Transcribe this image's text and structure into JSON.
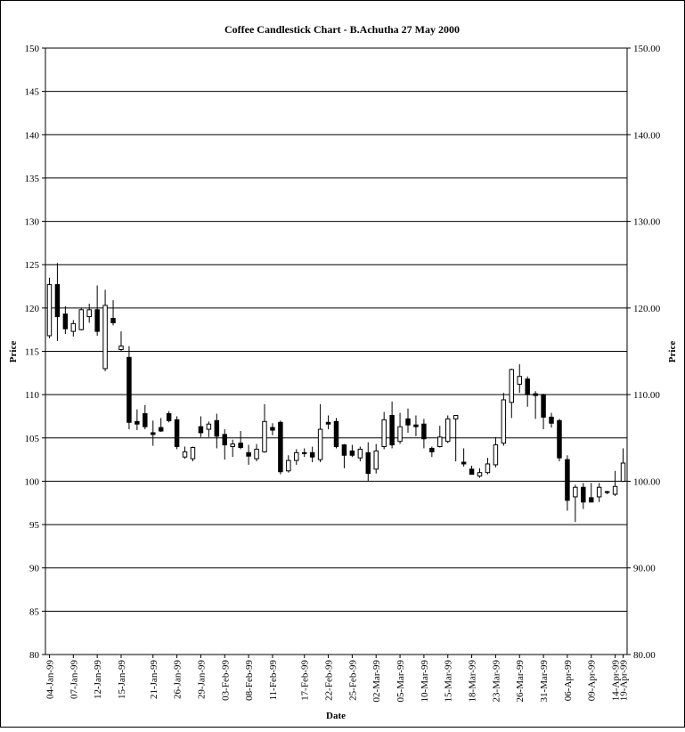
{
  "chart_data": {
    "type": "candlestick",
    "title": "Coffee  Candlestick Chart - B.Achutha 27 May 2000",
    "xlabel": "Date",
    "ylabel_left": "Price",
    "ylabel_right": "Price",
    "ylim": [
      80,
      150
    ],
    "y_ticks_left": [
      "80",
      "85",
      "90",
      "95",
      "100",
      "105",
      "110",
      "115",
      "120",
      "125",
      "130",
      "135",
      "140",
      "145",
      "150"
    ],
    "y_ticks_right": [
      "80.00",
      "90.00",
      "100.00",
      "110.00",
      "120.00",
      "130.00",
      "140.00",
      "150.00"
    ],
    "grid": "horizontal",
    "up_color": "#ffffff",
    "down_color": "#000000",
    "x_tick_labels": [
      "04-Jan-99",
      "07-Jan-99",
      "12-Jan-99",
      "15-Jan-99",
      "21-Jan-99",
      "26-Jan-99",
      "29-Jan-99",
      "03-Feb-99",
      "08-Feb-99",
      "11-Feb-99",
      "17-Feb-99",
      "22-Feb-99",
      "25-Feb-99",
      "02-Mar-99",
      "05-Mar-99",
      "10-Mar-99",
      "15-Mar-99",
      "18-Mar-99",
      "23-Mar-99",
      "26-Mar-99",
      "31-Mar-99",
      "06-Apr-99",
      "09-Apr-99",
      "14-Apr-99",
      "19-Apr-99"
    ],
    "series": [
      {
        "date": "04-Jan-99",
        "open": 116.8,
        "high": 123.5,
        "low": 116.5,
        "close": 122.7
      },
      {
        "date": "05-Jan-99",
        "open": 122.7,
        "high": 125.2,
        "low": 116.2,
        "close": 119.0
      },
      {
        "date": "06-Jan-99",
        "open": 119.3,
        "high": 120.2,
        "low": 117.0,
        "close": 117.6
      },
      {
        "date": "07-Jan-99",
        "open": 117.3,
        "high": 118.6,
        "low": 116.7,
        "close": 118.2
      },
      {
        "date": "08-Jan-99",
        "open": 117.5,
        "high": 120.0,
        "low": 117.4,
        "close": 119.8
      },
      {
        "date": "11-Jan-99",
        "open": 119.0,
        "high": 120.5,
        "low": 118.3,
        "close": 119.8
      },
      {
        "date": "12-Jan-99",
        "open": 119.8,
        "high": 122.6,
        "low": 116.8,
        "close": 117.3
      },
      {
        "date": "13-Jan-99",
        "open": 113.0,
        "high": 122.1,
        "low": 112.7,
        "close": 120.3
      },
      {
        "date": "14-Jan-99",
        "open": 118.8,
        "high": 120.9,
        "low": 118.0,
        "close": 118.3
      },
      {
        "date": "15-Jan-99",
        "open": 115.2,
        "high": 117.3,
        "low": 115.0,
        "close": 115.6
      },
      {
        "date": "18-Jan-99",
        "open": 114.3,
        "high": 115.6,
        "low": 106.0,
        "close": 106.8
      },
      {
        "date": "19-Jan-99",
        "open": 106.9,
        "high": 108.3,
        "low": 105.9,
        "close": 106.6
      },
      {
        "date": "20-Jan-99",
        "open": 107.8,
        "high": 108.8,
        "low": 106.0,
        "close": 106.3
      },
      {
        "date": "21-Jan-99",
        "open": 105.6,
        "high": 107.0,
        "low": 104.1,
        "close": 105.4
      },
      {
        "date": "22-Jan-99",
        "open": 106.2,
        "high": 107.3,
        "low": 105.7,
        "close": 105.8
      },
      {
        "date": "25-Jan-99",
        "open": 107.8,
        "high": 108.1,
        "low": 106.8,
        "close": 107.0
      },
      {
        "date": "26-Jan-99",
        "open": 107.1,
        "high": 107.5,
        "low": 103.7,
        "close": 104.0
      },
      {
        "date": "27-Jan-99",
        "open": 102.8,
        "high": 104.0,
        "low": 102.6,
        "close": 103.4
      },
      {
        "date": "28-Jan-99",
        "open": 102.6,
        "high": 104.0,
        "low": 102.3,
        "close": 103.9
      },
      {
        "date": "29-Jan-99",
        "open": 106.3,
        "high": 107.5,
        "low": 105.1,
        "close": 105.6
      },
      {
        "date": "01-Feb-99",
        "open": 106.0,
        "high": 106.9,
        "low": 105.1,
        "close": 106.6
      },
      {
        "date": "02-Feb-99",
        "open": 107.0,
        "high": 107.8,
        "low": 103.8,
        "close": 105.2
      },
      {
        "date": "03-Feb-99",
        "open": 105.4,
        "high": 106.0,
        "low": 102.5,
        "close": 104.2
      },
      {
        "date": "04-Feb-99",
        "open": 104.0,
        "high": 104.8,
        "low": 102.8,
        "close": 104.3
      },
      {
        "date": "05-Feb-99",
        "open": 104.4,
        "high": 105.8,
        "low": 103.7,
        "close": 103.9
      },
      {
        "date": "08-Feb-99",
        "open": 103.3,
        "high": 104.2,
        "low": 101.9,
        "close": 102.9
      },
      {
        "date": "09-Feb-99",
        "open": 102.6,
        "high": 104.3,
        "low": 102.3,
        "close": 103.7
      },
      {
        "date": "10-Feb-99",
        "open": 103.4,
        "high": 108.9,
        "low": 103.3,
        "close": 106.9
      },
      {
        "date": "11-Feb-99",
        "open": 106.2,
        "high": 106.7,
        "low": 105.3,
        "close": 105.9
      },
      {
        "date": "12-Feb-99",
        "open": 106.8,
        "high": 107.0,
        "low": 100.8,
        "close": 101.1
      },
      {
        "date": "15-Feb-99",
        "open": 101.2,
        "high": 103.0,
        "low": 101.0,
        "close": 102.4
      },
      {
        "date": "16-Feb-99",
        "open": 102.4,
        "high": 103.7,
        "low": 101.9,
        "close": 103.3
      },
      {
        "date": "17-Feb-99",
        "open": 103.3,
        "high": 103.8,
        "low": 102.8,
        "close": 103.3
      },
      {
        "date": "18-Feb-99",
        "open": 103.3,
        "high": 104.0,
        "low": 102.2,
        "close": 102.8
      },
      {
        "date": "19-Feb-99",
        "open": 102.5,
        "high": 108.9,
        "low": 102.2,
        "close": 106.0
      },
      {
        "date": "22-Feb-99",
        "open": 106.8,
        "high": 107.6,
        "low": 106.0,
        "close": 106.6
      },
      {
        "date": "23-Feb-99",
        "open": 106.9,
        "high": 107.3,
        "low": 103.8,
        "close": 104.0
      },
      {
        "date": "24-Feb-99",
        "open": 104.2,
        "high": 104.3,
        "low": 101.5,
        "close": 103.0
      },
      {
        "date": "25-Feb-99",
        "open": 103.5,
        "high": 104.2,
        "low": 102.8,
        "close": 103.0
      },
      {
        "date": "26-Feb-99",
        "open": 102.7,
        "high": 104.0,
        "low": 102.3,
        "close": 103.7
      },
      {
        "date": "01-Mar-99",
        "open": 103.3,
        "high": 104.5,
        "low": 100.0,
        "close": 100.9
      },
      {
        "date": "02-Mar-99",
        "open": 101.4,
        "high": 104.3,
        "low": 100.9,
        "close": 103.5
      },
      {
        "date": "03-Mar-99",
        "open": 104.0,
        "high": 108.0,
        "low": 103.7,
        "close": 107.1
      },
      {
        "date": "04-Mar-99",
        "open": 107.6,
        "high": 109.2,
        "low": 103.8,
        "close": 104.2
      },
      {
        "date": "05-Mar-99",
        "open": 104.6,
        "high": 107.9,
        "low": 104.3,
        "close": 106.3
      },
      {
        "date": "08-Mar-99",
        "open": 107.2,
        "high": 108.4,
        "low": 105.6,
        "close": 106.5
      },
      {
        "date": "09-Mar-99",
        "open": 106.5,
        "high": 107.6,
        "low": 105.2,
        "close": 106.3
      },
      {
        "date": "10-Mar-99",
        "open": 106.6,
        "high": 107.2,
        "low": 103.8,
        "close": 104.9
      },
      {
        "date": "11-Mar-99",
        "open": 103.8,
        "high": 104.0,
        "low": 102.8,
        "close": 103.4
      },
      {
        "date": "12-Mar-99",
        "open": 104.0,
        "high": 106.4,
        "low": 103.9,
        "close": 105.1
      },
      {
        "date": "15-Mar-99",
        "open": 104.6,
        "high": 107.6,
        "low": 104.4,
        "close": 107.2
      },
      {
        "date": "16-Mar-99",
        "open": 107.2,
        "high": 107.6,
        "low": 102.3,
        "close": 107.6
      },
      {
        "date": "17-Mar-99",
        "open": 102.2,
        "high": 103.8,
        "low": 101.7,
        "close": 102.0
      },
      {
        "date": "18-Mar-99",
        "open": 101.4,
        "high": 101.8,
        "low": 100.8,
        "close": 100.8
      },
      {
        "date": "19-Mar-99",
        "open": 100.6,
        "high": 101.5,
        "low": 100.4,
        "close": 101.0
      },
      {
        "date": "22-Mar-99",
        "open": 101.0,
        "high": 102.7,
        "low": 100.8,
        "close": 102.0
      },
      {
        "date": "23-Mar-99",
        "open": 101.9,
        "high": 105.1,
        "low": 101.6,
        "close": 104.2
      },
      {
        "date": "24-Mar-99",
        "open": 104.4,
        "high": 110.2,
        "low": 104.1,
        "close": 109.4
      },
      {
        "date": "25-Mar-99",
        "open": 109.1,
        "high": 113.0,
        "low": 107.3,
        "close": 112.9
      },
      {
        "date": "26-Mar-99",
        "open": 111.2,
        "high": 113.5,
        "low": 110.2,
        "close": 112.1
      },
      {
        "date": "29-Mar-99",
        "open": 111.8,
        "high": 112.1,
        "low": 108.6,
        "close": 110.0
      },
      {
        "date": "30-Mar-99",
        "open": 110.1,
        "high": 110.4,
        "low": 107.2,
        "close": 109.9
      },
      {
        "date": "31-Mar-99",
        "open": 110.0,
        "high": 110.1,
        "low": 106.0,
        "close": 107.4
      },
      {
        "date": "01-Apr-99",
        "open": 107.4,
        "high": 107.9,
        "low": 106.2,
        "close": 106.7
      },
      {
        "date": "05-Apr-99",
        "open": 107.0,
        "high": 107.2,
        "low": 102.3,
        "close": 102.7
      },
      {
        "date": "06-Apr-99",
        "open": 102.5,
        "high": 103.0,
        "low": 96.6,
        "close": 97.8
      },
      {
        "date": "07-Apr-99",
        "open": 98.2,
        "high": 99.6,
        "low": 95.3,
        "close": 99.3
      },
      {
        "date": "08-Apr-99",
        "open": 99.3,
        "high": 99.8,
        "low": 96.8,
        "close": 97.6
      },
      {
        "date": "09-Apr-99",
        "open": 98.1,
        "high": 99.8,
        "low": 97.6,
        "close": 97.6
      },
      {
        "date": "12-Apr-99",
        "open": 98.2,
        "high": 99.8,
        "low": 97.6,
        "close": 99.3
      },
      {
        "date": "13-Apr-99",
        "open": 98.8,
        "high": 98.9,
        "low": 98.5,
        "close": 98.7
      },
      {
        "date": "14-Apr-99",
        "open": 98.5,
        "high": 101.2,
        "low": 98.3,
        "close": 99.4
      },
      {
        "date": "19-Apr-99",
        "open": 100.0,
        "high": 103.8,
        "low": 100.0,
        "close": 102.1
      }
    ]
  }
}
